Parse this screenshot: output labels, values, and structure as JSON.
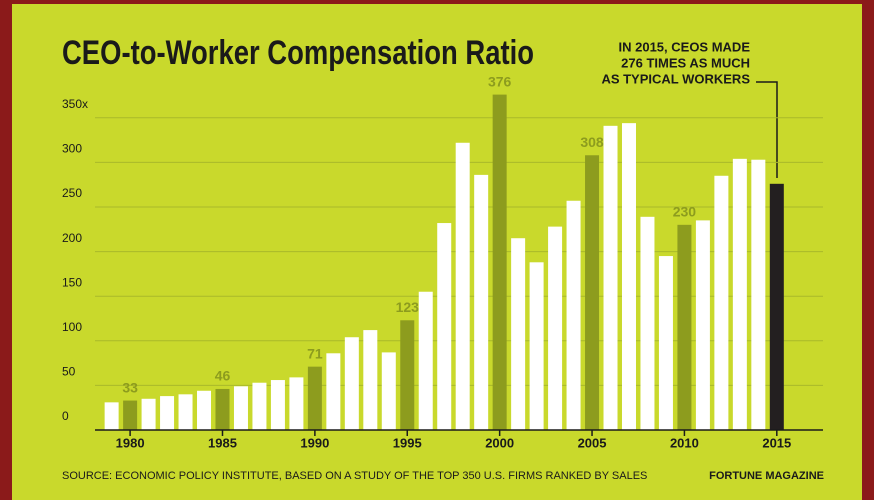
{
  "chart_data": {
    "type": "bar",
    "title": "CEO-to-Worker Compensation Ratio",
    "annotation": [
      "IN 2015, CEOS MADE",
      "276 TIMES AS MUCH",
      "AS TYPICAL WORKERS"
    ],
    "source": "SOURCE: ECONOMIC POLICY INSTITUTE, BASED ON A STUDY OF THE TOP 350 U.S. FIRMS RANKED BY SALES",
    "credit": "FORTUNE MAGAZINE",
    "x": [
      1979,
      1980,
      1981,
      1982,
      1983,
      1984,
      1985,
      1986,
      1987,
      1988,
      1989,
      1990,
      1991,
      1992,
      1993,
      1994,
      1995,
      1996,
      1997,
      1998,
      1999,
      2000,
      2001,
      2002,
      2003,
      2004,
      2005,
      2006,
      2007,
      2008,
      2009,
      2010,
      2011,
      2012,
      2013,
      2014,
      2015
    ],
    "values": [
      31,
      33,
      35,
      38,
      40,
      44,
      46,
      49,
      53,
      56,
      59,
      71,
      86,
      104,
      112,
      87,
      123,
      155,
      232,
      322,
      286,
      376,
      215,
      188,
      228,
      257,
      308,
      341,
      344,
      239,
      195,
      230,
      235,
      285,
      304,
      303,
      276
    ],
    "colors": [
      "#ffffff",
      "#8d9c1e",
      "#ffffff",
      "#ffffff",
      "#ffffff",
      "#ffffff",
      "#8d9c1e",
      "#ffffff",
      "#ffffff",
      "#ffffff",
      "#ffffff",
      "#8d9c1e",
      "#ffffff",
      "#ffffff",
      "#ffffff",
      "#ffffff",
      "#8d9c1e",
      "#ffffff",
      "#ffffff",
      "#ffffff",
      "#ffffff",
      "#8d9c1e",
      "#ffffff",
      "#ffffff",
      "#ffffff",
      "#ffffff",
      "#8d9c1e",
      "#ffffff",
      "#ffffff",
      "#ffffff",
      "#ffffff",
      "#8d9c1e",
      "#ffffff",
      "#ffffff",
      "#ffffff",
      "#ffffff",
      "#231f20"
    ],
    "labeled": [
      1980,
      1985,
      1990,
      1995,
      2000,
      2005,
      2010
    ],
    "xlim": [
      1978.1,
      2017.5
    ],
    "xticks": [
      1980,
      1985,
      1990,
      1995,
      2000,
      2005,
      2010,
      2015
    ],
    "ylim": [
      0,
      376
    ],
    "yticks": [
      0,
      50,
      100,
      150,
      200,
      250,
      300,
      {
        "value": 350,
        "label": "350x"
      }
    ],
    "grid": true
  }
}
